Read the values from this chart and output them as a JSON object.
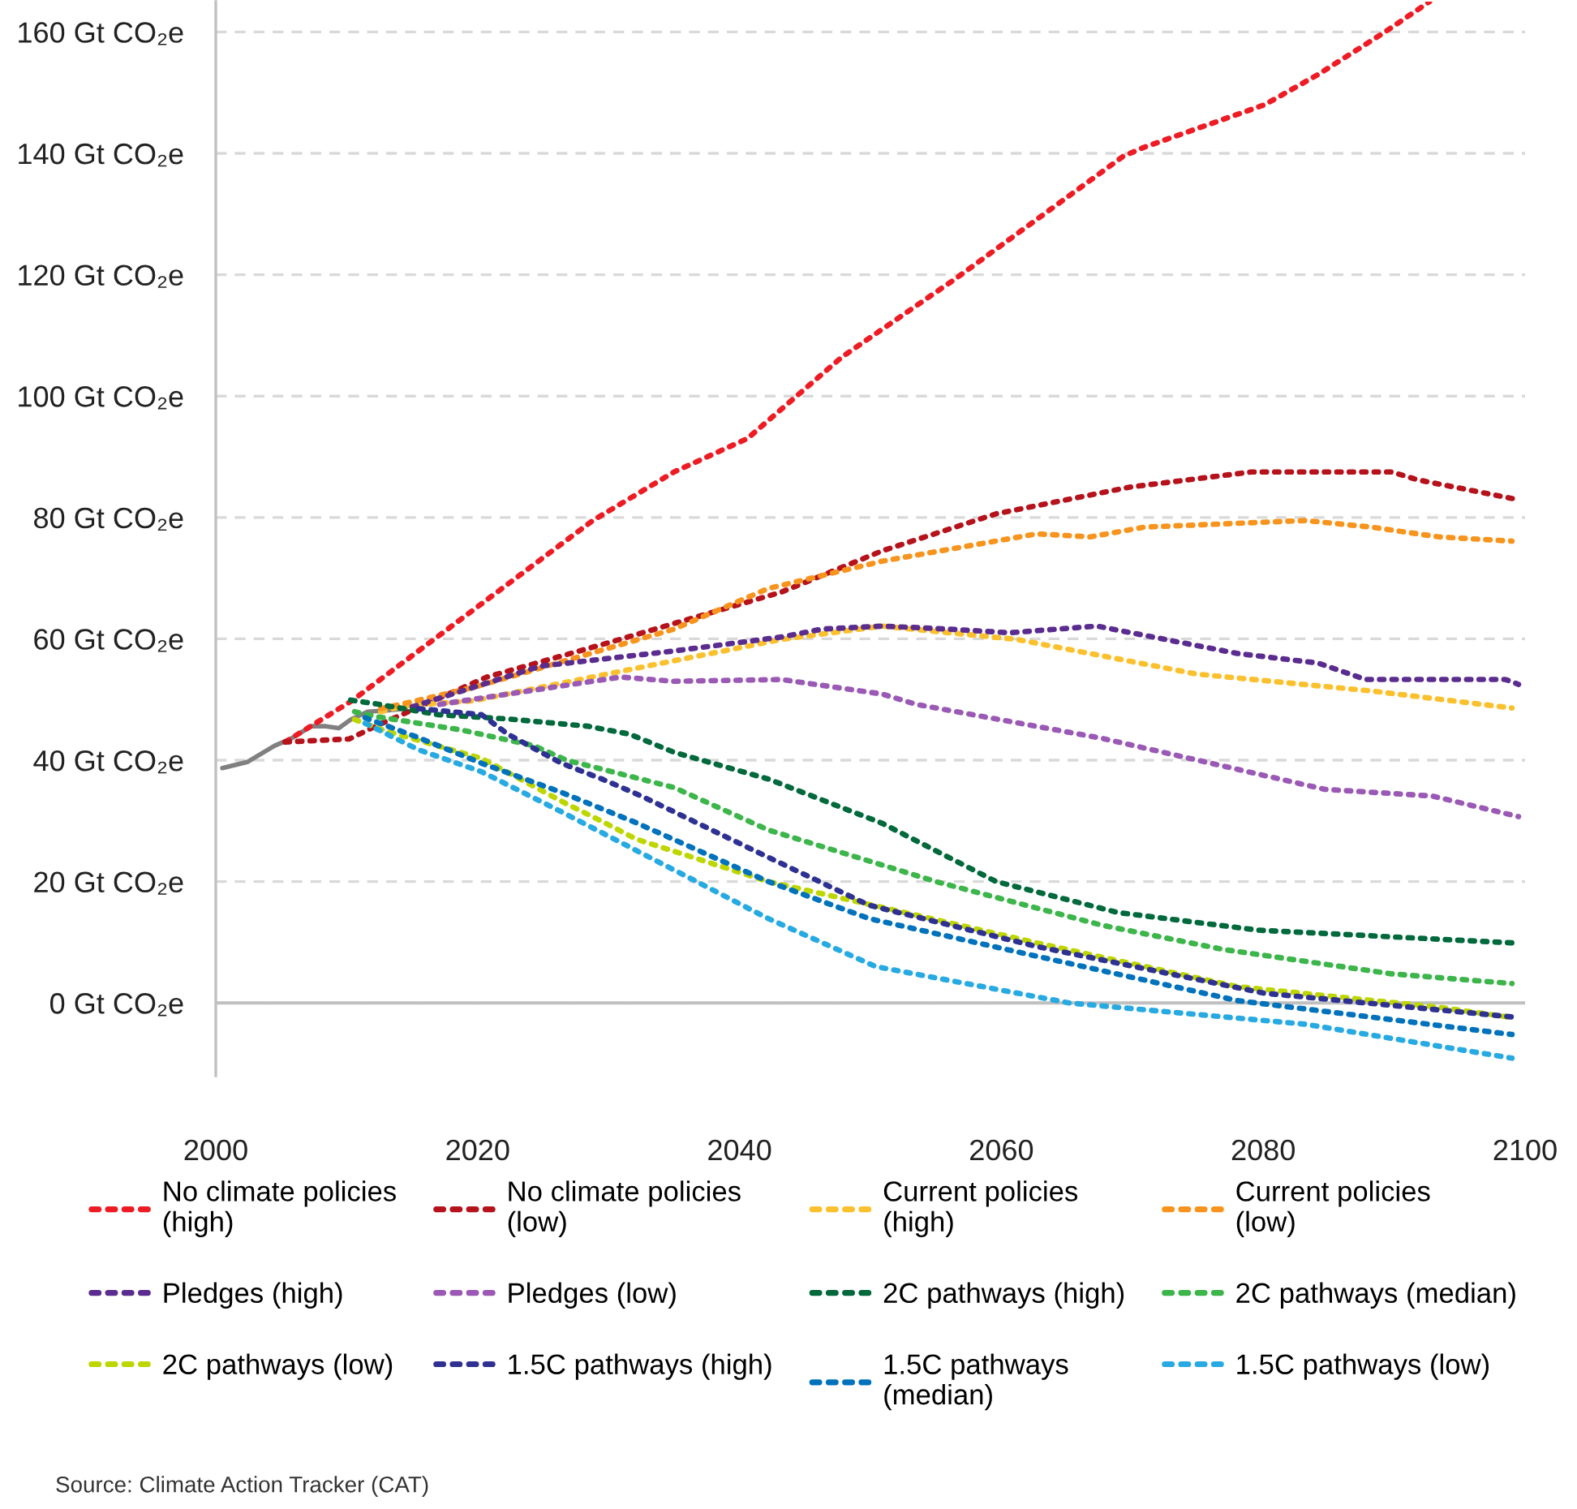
{
  "chart_data": {
    "type": "line",
    "ylim": [
      -12,
      165
    ],
    "xlim": [
      2000,
      2100
    ],
    "yticks": [
      {
        "value": 0,
        "label": "0 Gt CO₂e"
      },
      {
        "value": 20,
        "label": "20 Gt CO₂e"
      },
      {
        "value": 40,
        "label": "40 Gt CO₂e"
      },
      {
        "value": 60,
        "label": "60 Gt CO₂e"
      },
      {
        "value": 80,
        "label": "80 Gt CO₂e"
      },
      {
        "value": 100,
        "label": "100 Gt CO₂e"
      },
      {
        "value": 120,
        "label": "120 Gt CO₂e"
      },
      {
        "value": 140,
        "label": "140 Gt CO₂e"
      },
      {
        "value": 160,
        "label": "160 Gt CO₂e"
      }
    ],
    "xticks": [
      2000,
      2020,
      2040,
      2060,
      2080,
      2100
    ],
    "grid": "y",
    "legend": "bottom",
    "marker": "none",
    "ref_lines": [
      {
        "axis": "y",
        "value": 0,
        "color": "#c0c0c0",
        "line_style": "solid"
      }
    ],
    "annotations": [
      "Source: Climate Action Tracker (CAT)"
    ],
    "series": [
      {
        "color": "#808080",
        "line_style": "solid",
        "x": [
          2000.5,
          2002.4,
          2004.5,
          2005.7,
          2007.3,
          2008.4,
          2009.4,
          2010.3,
          2011.6,
          2013,
          2014.5
        ],
        "values": [
          38.7,
          39.7,
          42.4,
          43.5,
          45.6,
          45.6,
          45.3,
          46.7,
          48,
          48.2,
          48.5
        ]
      },
      {
        "name": "No climate policies (high)",
        "color": "#ed1c24",
        "line_style": "dotted",
        "x": [
          2005.3,
          2010.4,
          2028.8,
          2035,
          2040.6,
          2047.8,
          2056.6,
          2069.3,
          2070.9,
          2080.1,
          2084.2,
          2089.3,
          2092.7
        ],
        "values": [
          43,
          49.8,
          79.5,
          87.5,
          93,
          106.4,
          119.5,
          139.5,
          141,
          148,
          153,
          160,
          165
        ]
      },
      {
        "name": "No climate policies (low)",
        "color": "#b5121b",
        "line_style": "dotted",
        "x": [
          2005.3,
          2010.2,
          2012.6,
          2014.2,
          2020.7,
          2029.9,
          2043.2,
          2050.9,
          2059.6,
          2069.8,
          2079.1,
          2089.8,
          2091.8,
          2099.3
        ],
        "values": [
          43,
          43.5,
          46,
          47.5,
          53.7,
          59.3,
          67.7,
          74.5,
          80.6,
          85,
          87.5,
          87.5,
          86.2,
          83
        ]
      },
      {
        "name": "Current policies (high)",
        "color": "#fbc02d",
        "line_style": "dotted",
        "x": [
          2012.6,
          2014.5,
          2019.7,
          2029.9,
          2043.2,
          2050.9,
          2061.2,
          2074.9,
          2088.3,
          2099
        ],
        "values": [
          48,
          49,
          49.8,
          54.2,
          59.9,
          62.1,
          59.9,
          54.2,
          51.4,
          48.6
        ]
      },
      {
        "name": "Current policies (low)",
        "color": "#f7941d",
        "line_style": "dotted",
        "x": [
          2012.6,
          2014.5,
          2019.7,
          2035,
          2042.2,
          2050.9,
          2062.7,
          2066.8,
          2070.9,
          2083.2,
          2088.3,
          2093.4,
          2099
        ],
        "values": [
          48.5,
          49.4,
          52,
          61.6,
          68.3,
          72.8,
          77.3,
          76.8,
          78.4,
          79.5,
          78.4,
          76.8,
          76.1
        ]
      },
      {
        "name": "Pledges (high)",
        "color": "#5b2c8f",
        "line_style": "dotted",
        "x": [
          2015,
          2024.8,
          2035,
          2043.2,
          2046.3,
          2050.9,
          2056,
          2060.6,
          2067.3,
          2078,
          2084.2,
          2087.8,
          2098.5,
          2099.5
        ],
        "values": [
          48.8,
          55.5,
          58,
          60.3,
          61.6,
          62.1,
          61.6,
          61,
          62.1,
          57.6,
          56,
          53.3,
          53.3,
          52.5
        ]
      },
      {
        "name": "Pledges (low)",
        "color": "#9b59b6",
        "line_style": "dotted",
        "x": [
          2017.1,
          2030.9,
          2035,
          2043.2,
          2050.9,
          2053.5,
          2067.7,
          2084.7,
          2092.9,
          2099.5
        ],
        "values": [
          49.2,
          53.7,
          53,
          53.3,
          50.9,
          49.2,
          43.6,
          35.2,
          34.1,
          30.7
        ]
      },
      {
        "name": "2C pathways (high)",
        "color": "#00693c",
        "line_style": "dotted",
        "x": [
          2010.3,
          2012.2,
          2017,
          2022.3,
          2028.4,
          2031.6,
          2035,
          2042.2,
          2050.9,
          2059.6,
          2068.9,
          2079.6,
          2099
        ],
        "values": [
          49.9,
          49.3,
          47.5,
          46.8,
          45.6,
          44.3,
          41.3,
          36.9,
          29.6,
          20,
          14.9,
          12,
          9.9
        ]
      },
      {
        "name": "2C pathways (median)",
        "color": "#3cb54a",
        "line_style": "dotted",
        "x": [
          2010.6,
          2012.2,
          2018.7,
          2024.3,
          2026.8,
          2035,
          2042.2,
          2055,
          2067.7,
          2077,
          2089.8,
          2099
        ],
        "values": [
          48,
          47.2,
          45,
          42.4,
          40,
          35.5,
          28.5,
          20,
          12.8,
          8.8,
          4.8,
          3.2
        ]
      },
      {
        "name": "2C pathways (low)",
        "color": "#bed600",
        "line_style": "dotted",
        "x": [
          2010.6,
          2013,
          2020.3,
          2026.8,
          2029.7,
          2032.1,
          2042.2,
          2051.4,
          2062.7,
          2078,
          2093.4,
          2099
        ],
        "values": [
          46.7,
          44.8,
          40.3,
          32.8,
          29.7,
          27,
          20,
          15.5,
          9.9,
          2.7,
          -0.7,
          -2.4
        ]
      },
      {
        "name": "1.5C pathways (high)",
        "color": "#2e3192",
        "line_style": "dotted",
        "x": [
          2015.5,
          2020.3,
          2022.3,
          2026.4,
          2029.6,
          2032.5,
          2042.2,
          2049.9,
          2062.7,
          2080.1,
          2099.5
        ],
        "values": [
          48.5,
          47.5,
          44.3,
          39.5,
          36.8,
          34.1,
          24,
          16.1,
          9.3,
          1.6,
          -2.4
        ]
      },
      {
        "name": "1.5C pathways (median)",
        "color": "#0072bc",
        "line_style": "dotted",
        "x": [
          2011.4,
          2015.5,
          2020.3,
          2026.4,
          2032.1,
          2042.2,
          2049.9,
          2062.7,
          2078,
          2099
        ],
        "values": [
          47,
          43.7,
          39.5,
          34.7,
          29.7,
          20,
          13.9,
          7.7,
          0.4,
          -5.2
        ]
      },
      {
        "name": "1.5C pathways (low)",
        "color": "#27aae1",
        "line_style": "dotted",
        "x": [
          2011.4,
          2015.5,
          2020.3,
          2026.4,
          2031.6,
          2042.2,
          2050.4,
          2065.2,
          2083.2,
          2099
        ],
        "values": [
          46.1,
          41.7,
          38.1,
          31.5,
          25.7,
          13.9,
          6,
          0,
          -3.5,
          -9.1
        ]
      }
    ]
  }
}
